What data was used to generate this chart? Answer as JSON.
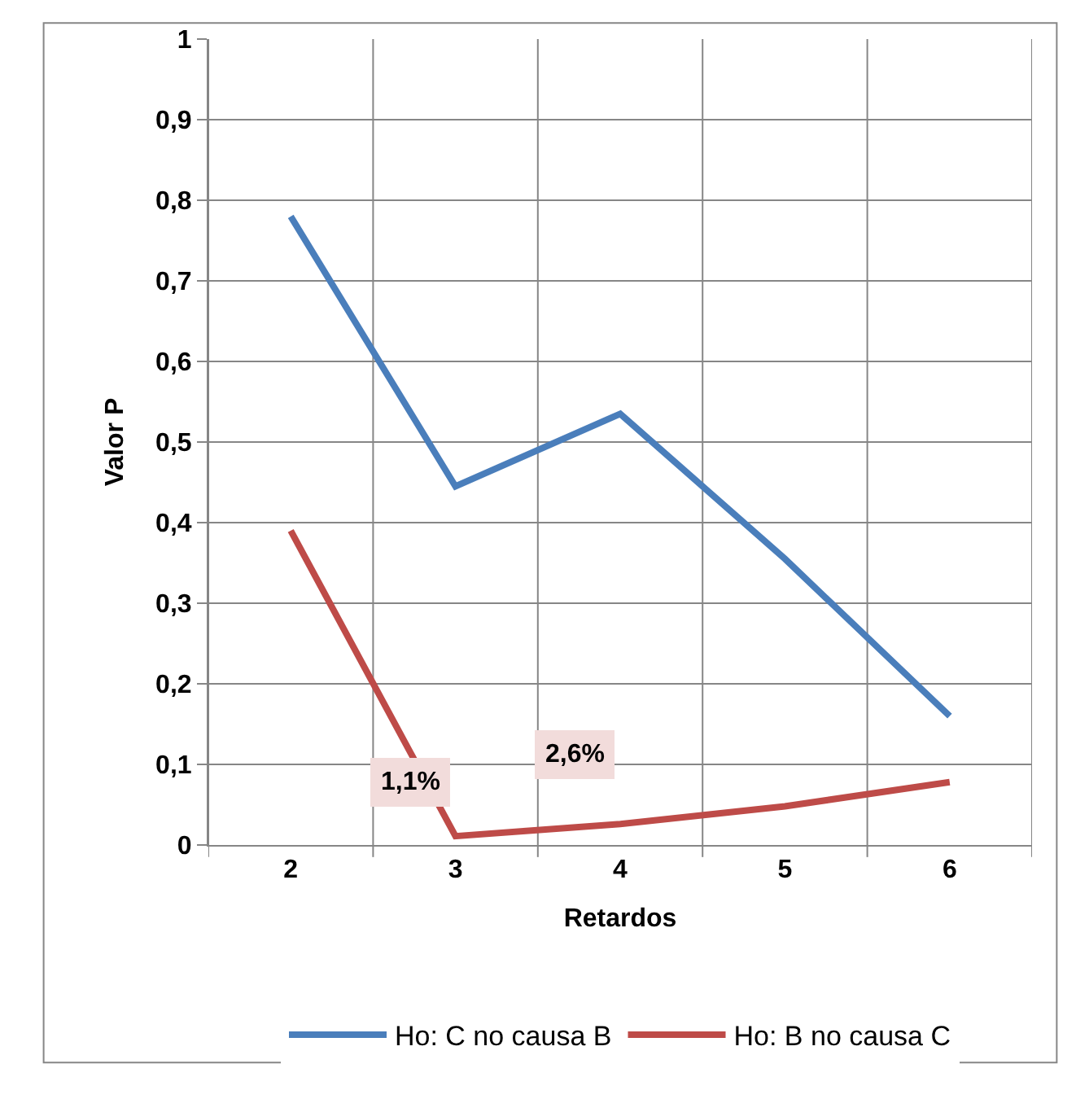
{
  "chart_data": {
    "type": "line",
    "xlabel": "Retardos",
    "ylabel": "Valor P",
    "categories": [
      "2",
      "3",
      "4",
      "5",
      "6"
    ],
    "series": [
      {
        "name": "Ho: C no causa B",
        "color": "#4a7ebb",
        "values": [
          0.78,
          0.445,
          0.535,
          0.355,
          0.16
        ]
      },
      {
        "name": "Ho: B no causa C",
        "color": "#be4b48",
        "values": [
          0.39,
          0.011,
          0.026,
          0.048,
          0.078
        ]
      }
    ],
    "annotations": [
      {
        "text": "1,1%",
        "x": "3",
        "y": 0.011
      },
      {
        "text": "2,6%",
        "x": "4",
        "y": 0.026
      }
    ],
    "ylim": [
      0,
      1
    ],
    "yticks": [
      0,
      {
        "value": 0.1,
        "label": "0,1"
      },
      {
        "value": 0.2,
        "label": "0,2"
      },
      {
        "value": 0.3,
        "label": "0,3"
      },
      {
        "value": 0.4,
        "label": "0,4"
      },
      {
        "value": 0.5,
        "label": "0,5"
      },
      {
        "value": 0.6,
        "label": "0,6"
      },
      {
        "value": 0.7,
        "label": "0,7"
      },
      {
        "value": 0.8,
        "label": "0,8"
      },
      {
        "value": 0.9,
        "label": "0,9"
      },
      1
    ],
    "grid": true,
    "legend": "bottom",
    "marker": "none",
    "line_style": "solid"
  }
}
